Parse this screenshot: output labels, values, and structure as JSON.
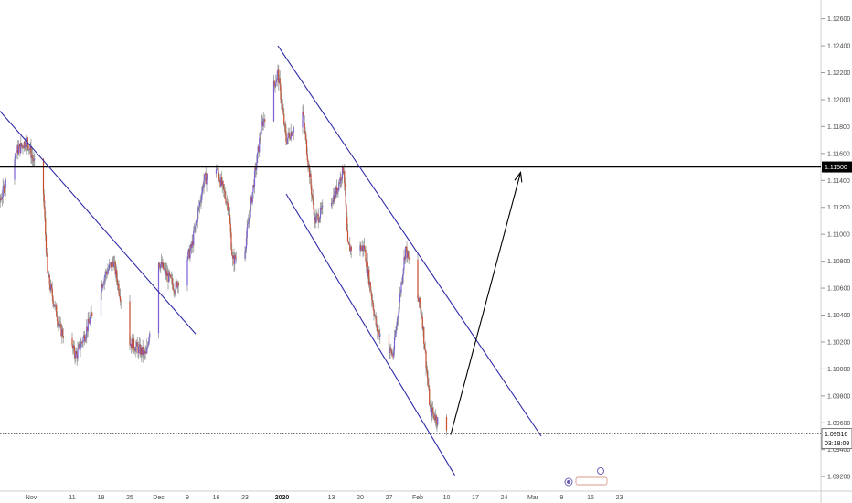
{
  "chart_data": {
    "type": "candlestick",
    "y_ticks": [
      "1.12600",
      "1.12400",
      "1.12200",
      "1.12000",
      "1.11800",
      "1.11600",
      "1.11400",
      "1.11200",
      "1.11000",
      "1.10800",
      "1.10600",
      "1.10400",
      "1.10200",
      "1.10000",
      "1.09800",
      "1.09600",
      "1.09400",
      "1.09200"
    ],
    "x_ticks": [
      "Nov",
      "11",
      "18",
      "25",
      "Dec",
      "9",
      "16",
      "23",
      "2020",
      "13",
      "20",
      "27",
      "Feb",
      "10",
      "17",
      "24",
      "Mar",
      "9",
      "16",
      "23"
    ],
    "bold_x_ticks": [
      "2020"
    ],
    "ylim": [
      1.0914,
      1.1274
    ],
    "last_price": "1.09516",
    "countdown": "03:18:09",
    "horizontal_level": {
      "value": 1.115,
      "label": "1.11500"
    },
    "colors": {
      "up": "#7b5fd6",
      "down": "#c94a2c",
      "wick": "#9a9a9a",
      "trendline": "#2e2aa8",
      "level": "#000000",
      "arrow": "#000000"
    },
    "trendlines": [
      {
        "name": "",
        "from": [
          "Oct 24 2019",
          1.1193
        ],
        "to": [
          "Dec 11 2019",
          1.1026
        ]
      },
      {
        "name": "",
        "from": [
          "Dec 31 2019",
          1.124
        ],
        "to": [
          "Mar 04 2020",
          1.095
        ]
      },
      {
        "name": "",
        "from": [
          "Jan 02 2020",
          1.113
        ],
        "to": [
          "Feb 12 2020",
          1.0921
        ]
      }
    ],
    "arrow": {
      "from": [
        "Feb 11 2020",
        1.0951
      ],
      "to": [
        "Feb 28 2020",
        1.1146
      ]
    },
    "price_path": [
      [
        "Oct 21 2019",
        1.109
      ],
      [
        "Oct 25 2019",
        1.113
      ],
      [
        "Oct 28 2019",
        1.116
      ],
      [
        "Oct 31 2019",
        1.117
      ],
      [
        "Nov 04 2019",
        1.113
      ],
      [
        "Nov 05 2019",
        1.107
      ],
      [
        "Nov 08 2019",
        1.103
      ],
      [
        "Nov 12 2019",
        1.101
      ],
      [
        "Nov 14 2019",
        1.1025
      ],
      [
        "Nov 19 2019",
        1.107
      ],
      [
        "Nov 21 2019",
        1.108
      ],
      [
        "Nov 25 2019",
        1.102
      ],
      [
        "Nov 29 2019",
        1.101
      ],
      [
        "Dec 02 2019",
        1.108
      ],
      [
        "Dec 06 2019",
        1.106
      ],
      [
        "Dec 10 2019",
        1.109
      ],
      [
        "Dec 13 2019",
        1.114
      ],
      [
        "Dec 16 2019",
        1.115
      ],
      [
        "Dec 19 2019",
        1.112
      ],
      [
        "Dec 20 2019",
        1.108
      ],
      [
        "Dec 23 2019",
        1.109
      ],
      [
        "Dec 27 2019",
        1.118
      ],
      [
        "Dec 31 2019",
        1.122
      ],
      [
        "Jan 02 2020",
        1.117
      ],
      [
        "Jan 06 2020",
        1.119
      ],
      [
        "Jan 09 2020",
        1.111
      ],
      [
        "Jan 14 2020",
        1.113
      ],
      [
        "Jan 16 2020",
        1.115
      ],
      [
        "Jan 17 2020",
        1.109
      ],
      [
        "Jan 21 2020",
        1.109
      ],
      [
        "Jan 24 2020",
        1.103
      ],
      [
        "Jan 28 2020",
        1.101
      ],
      [
        "Jan 31 2020",
        1.109
      ],
      [
        "Feb 04 2020",
        1.104
      ],
      [
        "Feb 06 2020",
        1.097
      ],
      [
        "Feb 10 2020",
        1.0952
      ]
    ]
  }
}
